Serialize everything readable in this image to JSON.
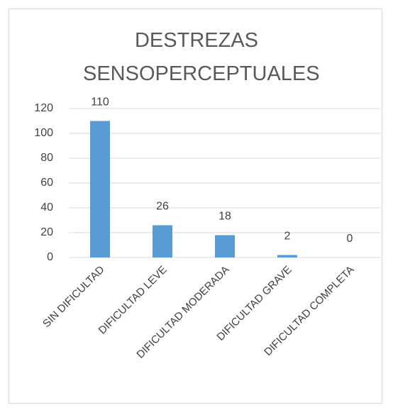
{
  "chart_data": {
    "type": "bar",
    "title": "DESTREZAS SENSOPERCEPTUALES",
    "categories": [
      "SIN DIFICULTAD",
      "DIFICULTAD LEVE",
      "DIFICULTAD MODERADA",
      "DIFICULTAD GRAVE",
      "DIFICULTAD COMPLETA"
    ],
    "values": [
      110,
      26,
      18,
      2,
      0
    ],
    "color": "#5b9bd5",
    "ylim": [
      0,
      120
    ],
    "yticks": [
      0,
      20,
      40,
      60,
      80,
      100,
      120
    ],
    "grid": true
  }
}
